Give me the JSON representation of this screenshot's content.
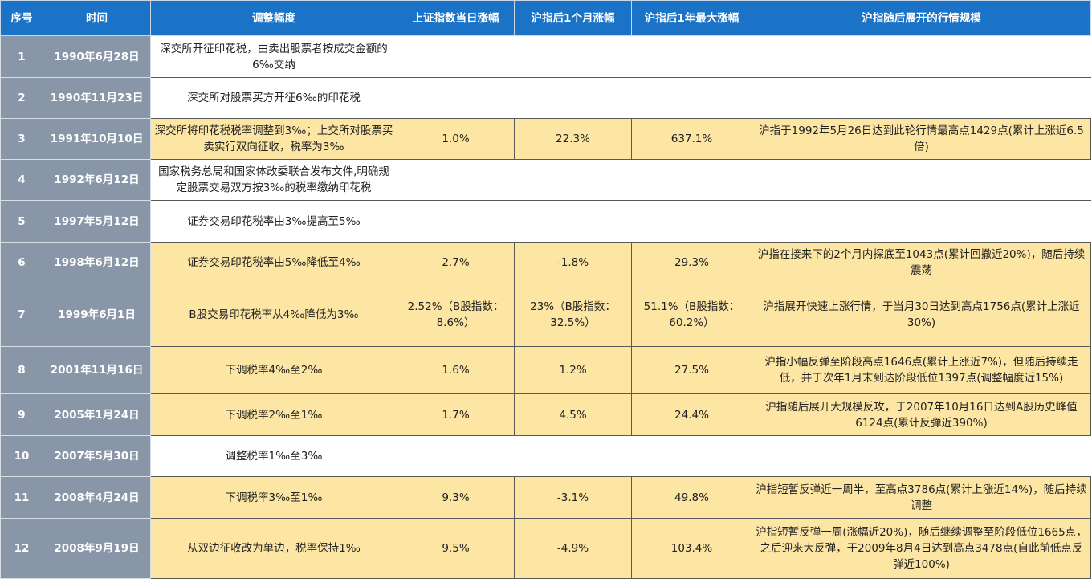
{
  "colors": {
    "header": "#1a73c6",
    "index_column": "#8896a8",
    "highlight_row": "#fde5a3"
  },
  "headers": [
    "序号",
    "时间",
    "调整幅度",
    "上证指数当日涨幅",
    "沪指后1个月涨幅",
    "沪指后1年最大涨幅",
    "沪指随后展开的行情规模"
  ],
  "rows": [
    {
      "no": "1",
      "date": "1990年6月28日",
      "change": "深交所开征印花税，由卖出股票者按成交金额的6‰交纳",
      "day": "",
      "month": "",
      "year": "",
      "trend": "",
      "highlight": false
    },
    {
      "no": "2",
      "date": "1990年11月23日",
      "change": "深交所对股票买方开征6‰的印花税",
      "day": "",
      "month": "",
      "year": "",
      "trend": "",
      "highlight": false
    },
    {
      "no": "3",
      "date": "1991年10月10日",
      "change": "深交所将印花税税率调整到3‰；上交所对股票买卖实行双向征收，税率为3‰",
      "day": "1.0%",
      "month": "22.3%",
      "year": "637.1%",
      "trend": "沪指于1992年5月26日达到此轮行情最高点1429点(累计上涨近6.5倍)",
      "highlight": true
    },
    {
      "no": "4",
      "date": "1992年6月12日",
      "change": "国家税务总局和国家体改委联合发布文件,明确规定股票交易双方按3‰的税率缴纳印花税",
      "day": "",
      "month": "",
      "year": "",
      "trend": "",
      "highlight": false
    },
    {
      "no": "5",
      "date": "1997年5月12日",
      "change": "证券交易印花税率由3‰提高至5‰",
      "day": "",
      "month": "",
      "year": "",
      "trend": "",
      "highlight": false
    },
    {
      "no": "6",
      "date": "1998年6月12日",
      "change": "证券交易印花税率由5‰降低至4‰",
      "day": "2.7%",
      "month": "-1.8%",
      "year": "29.3%",
      "trend": "沪指在接来下的2个月内探底至1043点(累计回撤近20%)，随后持续震荡",
      "highlight": true
    },
    {
      "no": "7",
      "date": "1999年6月1日",
      "change": "B股交易印花税率从4‰降低为3‰",
      "day": "2.52%（B股指数：8.6%）",
      "month": "23%（B股指数：32.5%）",
      "year": "51.1%（B股指数：60.2%）",
      "trend": "沪指展开快速上涨行情，于当月30日达到高点1756点(累计上涨近30%)",
      "highlight": true
    },
    {
      "no": "8",
      "date": "2001年11月16日",
      "change": "下调税率4‰至2‰",
      "day": "1.6%",
      "month": "1.2%",
      "year": "27.5%",
      "trend": "沪指小幅反弹至阶段高点1646点(累计上涨近7%)，但随后持续走低，并于次年1月末到达阶段低位1397点(调整幅度近15%)",
      "highlight": true
    },
    {
      "no": "9",
      "date": "2005年1月24日",
      "change": "下调税率2‰至1‰",
      "day": "1.7%",
      "month": "4.5%",
      "year": "24.4%",
      "trend": "沪指随后展开大规模反攻，于2007年10月16日达到A股历史峰值6124点(累计反弹近390%)",
      "highlight": true
    },
    {
      "no": "10",
      "date": "2007年5月30日",
      "change": "调整税率1‰至3‰",
      "day": "",
      "month": "",
      "year": "",
      "trend": "",
      "highlight": false
    },
    {
      "no": "11",
      "date": "2008年4月24日",
      "change": "下调税率3‰至1‰",
      "day": "9.3%",
      "month": "-3.1%",
      "year": "49.8%",
      "trend": "沪指短暂反弹近一周半，至高点3786点(累计上涨近14%)，随后持续调整",
      "highlight": true
    },
    {
      "no": "12",
      "date": "2008年9月19日",
      "change": "从双边征收改为单边，税率保持1‰",
      "day": "9.5%",
      "month": "-4.9%",
      "year": "103.4%",
      "trend": "沪指短暂反弹一周(涨幅近20%)，随后继续调整至阶段低位1665点，之后迎来大反弹，于2009年8月4日达到高点3478点(自此前低点反弹近100%)",
      "highlight": true
    }
  ]
}
